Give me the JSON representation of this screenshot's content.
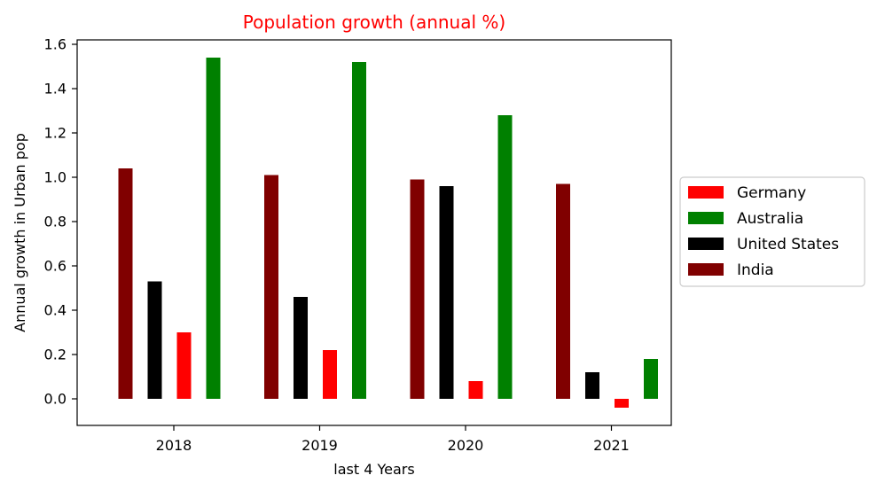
{
  "chart_data": {
    "type": "bar",
    "title": "Population growth (annual %)",
    "title_color": "#ff0000",
    "xlabel": "last 4 Years",
    "ylabel": "Annual growth in Urban pop",
    "categories": [
      "2018",
      "2019",
      "2020",
      "2021"
    ],
    "ylim": [
      -0.12,
      1.62
    ],
    "yticks": [
      0.0,
      0.2,
      0.4,
      0.6,
      0.8,
      1.0,
      1.2,
      1.4,
      1.6
    ],
    "ytick_labels": [
      "0.0",
      "0.2",
      "0.4",
      "0.6",
      "0.8",
      "1.0",
      "1.2",
      "1.4",
      "1.6"
    ],
    "grid": false,
    "legend_position": "right",
    "bar_order": [
      "India",
      "United States",
      "Germany",
      "Australia"
    ],
    "series": [
      {
        "name": "Germany",
        "color": "#ff0000",
        "values": [
          0.3,
          0.22,
          0.08,
          -0.04
        ]
      },
      {
        "name": "Australia",
        "color": "#008000",
        "values": [
          1.54,
          1.52,
          1.28,
          0.18
        ]
      },
      {
        "name": "United States",
        "color": "#000000",
        "values": [
          0.53,
          0.46,
          0.96,
          0.12
        ]
      },
      {
        "name": "India",
        "color": "#800000",
        "values": [
          1.04,
          1.01,
          0.99,
          0.97
        ]
      }
    ]
  }
}
